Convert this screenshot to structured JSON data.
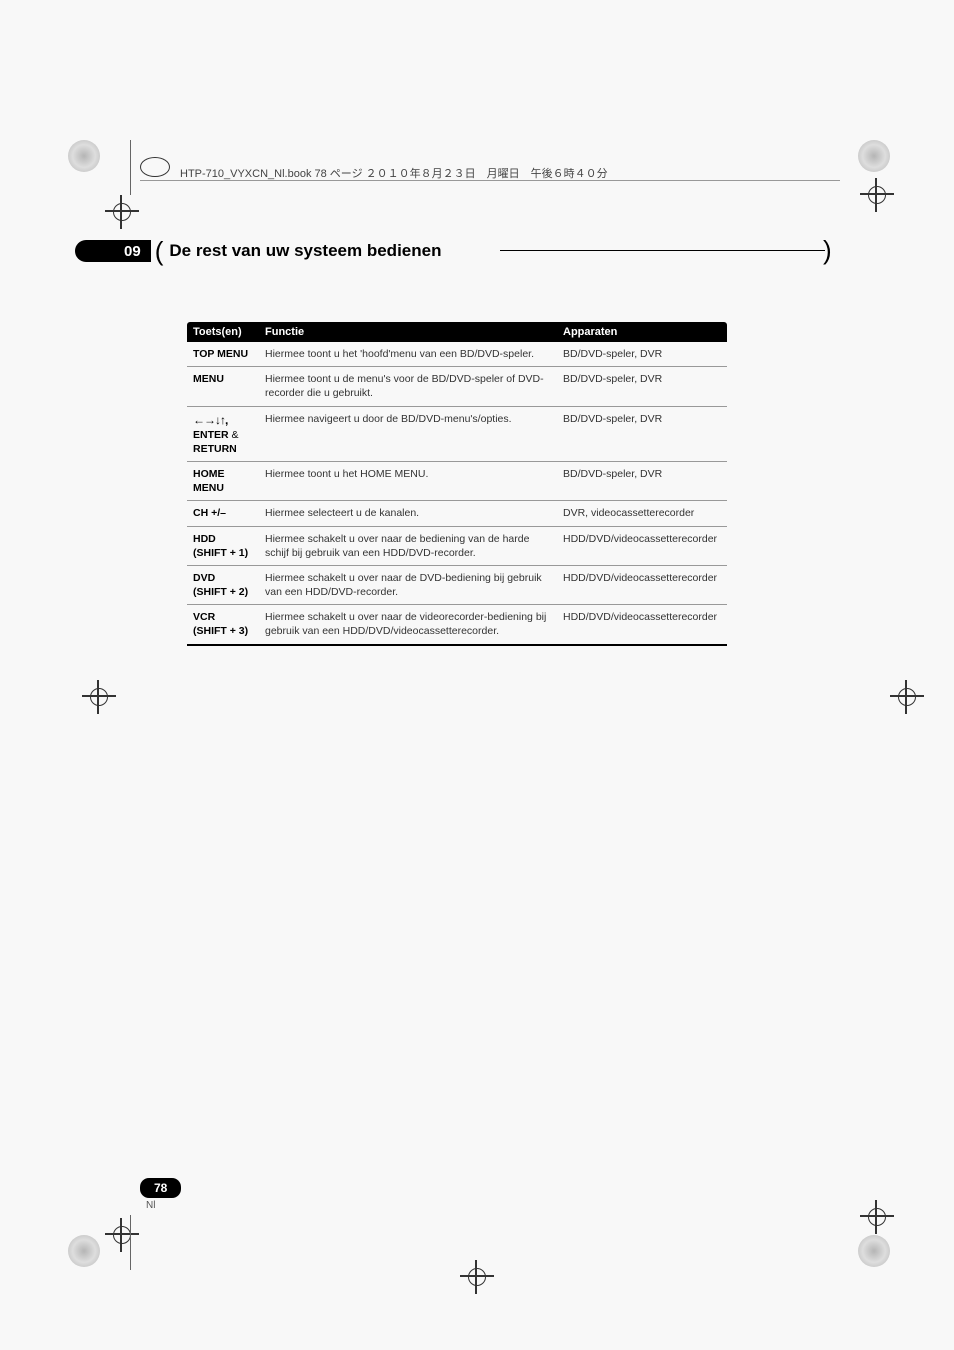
{
  "print_header": "HTP-710_VYXCN_Nl.book  78 ページ ２０１０年８月２３日　月曜日　午後６時４０分",
  "chapter": {
    "number": "09",
    "title": "De rest van uw systeem bedienen"
  },
  "table": {
    "headers": {
      "col1": "Toets(en)",
      "col2": "Functie",
      "col3": "Apparaten"
    },
    "rows": [
      {
        "key": "TOP MENU",
        "func": "Hiermee toont u het 'hoofd'menu van een BD/DVD-speler.",
        "dev": "BD/DVD-speler, DVR"
      },
      {
        "key": "MENU",
        "func": "Hiermee toont u de menu's voor de BD/DVD-speler of DVD-recorder die u gebruikt.",
        "dev": "BD/DVD-speler, DVR"
      },
      {
        "key_html": "arrows",
        "key": "←→↓↑, ENTER & RETURN",
        "key_line1": "←→↓↑,",
        "key_line2": "ENTER",
        "key_amp": " & ",
        "key_line3": "RETURN",
        "func": "Hiermee navigeert u door de BD/DVD-menu's/opties.",
        "dev": "BD/DVD-speler, DVR"
      },
      {
        "key": "HOME MENU",
        "key_line1": "HOME",
        "key_line2": "MENU",
        "func": "Hiermee toont u het HOME MENU.",
        "dev": "BD/DVD-speler, DVR"
      },
      {
        "key": "CH +/–",
        "func": "Hiermee selecteert u de kanalen.",
        "dev": "DVR, videocassetterecorder"
      },
      {
        "key": "HDD",
        "key_sub": "(SHIFT + 1)",
        "func": "Hiermee schakelt u over naar de bediening van de harde schijf bij gebruik van een HDD/DVD-recorder.",
        "dev": "HDD/DVD/videocassetterecorder"
      },
      {
        "key": "DVD",
        "key_sub": "(SHIFT + 2)",
        "func": "Hiermee schakelt u over naar de DVD-bediening bij gebruik van een HDD/DVD-recorder.",
        "dev": "HDD/DVD/videocassetterecorder"
      },
      {
        "key": "VCR",
        "key_sub": "(SHIFT + 3)",
        "func": "Hiermee schakelt u over naar de videorecorder-bediening bij gebruik van een HDD/DVD/videocassetterecorder.",
        "dev": "HDD/DVD/videocassetterecorder"
      }
    ]
  },
  "footer": {
    "page_number": "78",
    "lang": "Nl"
  },
  "styling": {
    "header_bg": "#000000",
    "header_fg": "#ffffff",
    "body_text": "#333333",
    "border_color": "#999999",
    "table_font_size": 11,
    "chapter_font_size": 17
  }
}
